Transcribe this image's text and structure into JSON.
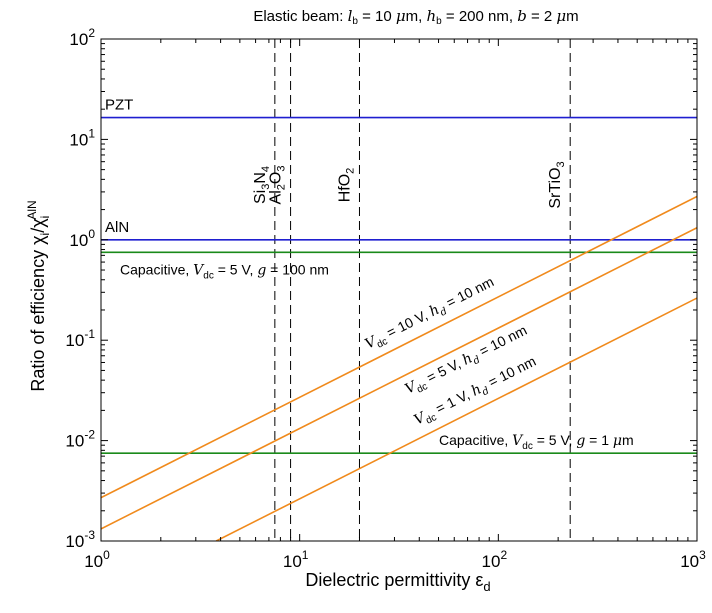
{
  "chart_data": {
    "type": "line",
    "title": "Elastic beam: l_b = 10 μm, h_b = 200 nm, b = 2 μm",
    "xlabel": "Dielectric permittivity ε_d",
    "ylabel": "Ratio of efficiency χ_i/χ_i^AlN",
    "x_scale": "log",
    "y_scale": "log",
    "xlim": [
      1,
      1000
    ],
    "ylim": [
      0.001,
      100
    ],
    "grid": false,
    "legend": "none",
    "x_ticks": [
      {
        "value": 1,
        "base": "10",
        "exp": "0"
      },
      {
        "value": 10,
        "base": "10",
        "exp": "1"
      },
      {
        "value": 100,
        "base": "10",
        "exp": "2"
      },
      {
        "value": 1000,
        "base": "10",
        "exp": "3"
      }
    ],
    "y_ticks": [
      {
        "value": 0.001,
        "base": "10",
        "exp": "-3"
      },
      {
        "value": 0.01,
        "base": "10",
        "exp": "-2"
      },
      {
        "value": 0.1,
        "base": "10",
        "exp": "-1"
      },
      {
        "value": 1,
        "base": "10",
        "exp": "0"
      },
      {
        "value": 10,
        "base": "10",
        "exp": "1"
      },
      {
        "value": 100,
        "base": "10",
        "exp": "2"
      }
    ],
    "horizontal_lines": [
      {
        "label": "PZT",
        "y": 16.5,
        "color": "#1f1fd0"
      },
      {
        "label": "AlN",
        "y": 1.0,
        "color": "#1f1fd0"
      },
      {
        "label": "Capacitive, V_dc = 5 V, g = 100 nm",
        "y": 0.75,
        "color": "#1a8a1a"
      },
      {
        "label": "Capacitive, V_dc = 5 V, g = 1 μm",
        "y": 0.0075,
        "color": "#1a8a1a"
      }
    ],
    "vertical_lines": [
      {
        "label": "Si3N4",
        "x": 7.5
      },
      {
        "label": "Al2O3",
        "x": 9
      },
      {
        "label": "HfO2",
        "x": 20
      },
      {
        "label": "SrTiO3",
        "x": 230
      }
    ],
    "series": [
      {
        "label": "V_dc = 10 V, h_d = 10 nm",
        "color": "#f08a1c",
        "x": [
          1,
          1000
        ],
        "y": [
          0.0027,
          2.7
        ]
      },
      {
        "label": "V_dc = 5 V, h_d = 10 nm",
        "color": "#f08a1c",
        "x": [
          1,
          1000
        ],
        "y": [
          0.00132,
          1.32
        ]
      },
      {
        "label": "V_dc = 1 V, h_d = 10 nm",
        "color": "#f08a1c",
        "x": [
          3.8,
          1000
        ],
        "y": [
          0.001,
          0.263
        ]
      }
    ]
  }
}
